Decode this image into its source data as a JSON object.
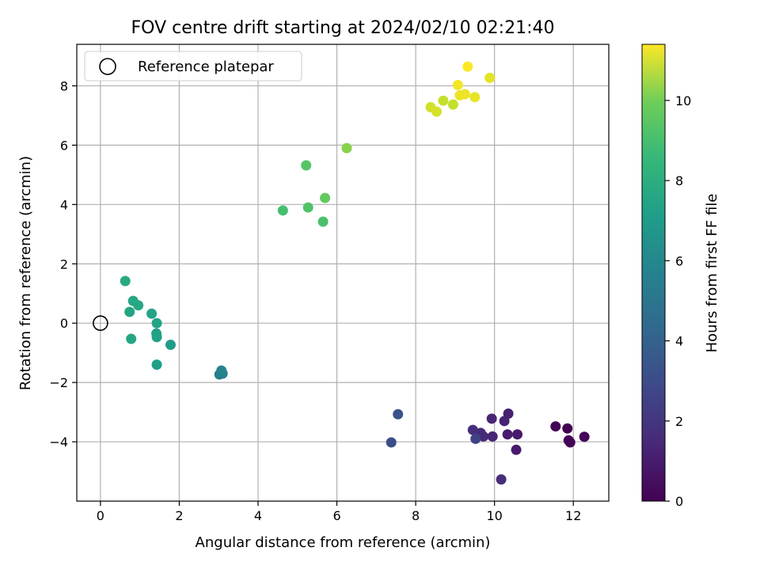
{
  "chart_data": {
    "type": "scatter",
    "title": "FOV centre drift starting at 2024/02/10 02:21:40",
    "xlabel": "Angular distance from reference (arcmin)",
    "ylabel": "Rotation from reference (arcmin)",
    "xlim": [
      -0.6,
      12.9
    ],
    "ylim": [
      -6.0,
      9.4
    ],
    "xticks": [
      "0",
      "2",
      "4",
      "6",
      "8",
      "10",
      "12"
    ],
    "yticks": [
      "−4",
      "−2",
      "0",
      "2",
      "4",
      "6",
      "8"
    ],
    "grid": true,
    "legend": {
      "placement": "top-left",
      "label": "Reference platepar"
    },
    "reference_point": {
      "x": 0,
      "y": 0
    },
    "colorbar": {
      "label": "Hours from first FF file",
      "range": [
        0,
        11.4
      ],
      "ticks": [
        "0",
        "2",
        "4",
        "6",
        "8",
        "10"
      ],
      "colormap": "viridis"
    },
    "points": [
      {
        "x": 11.55,
        "y": -3.48,
        "c": 0.0
      },
      {
        "x": 11.85,
        "y": -3.55,
        "c": 0.0
      },
      {
        "x": 11.88,
        "y": -3.95,
        "c": 0.1
      },
      {
        "x": 11.92,
        "y": -4.02,
        "c": 0.1
      },
      {
        "x": 12.28,
        "y": -3.83,
        "c": 0.2
      },
      {
        "x": 10.55,
        "y": -4.27,
        "c": 0.8
      },
      {
        "x": 10.58,
        "y": -3.75,
        "c": 0.8
      },
      {
        "x": 10.33,
        "y": -3.75,
        "c": 0.9
      },
      {
        "x": 10.35,
        "y": -3.05,
        "c": 1.0
      },
      {
        "x": 10.25,
        "y": -3.3,
        "c": 1.1
      },
      {
        "x": 9.93,
        "y": -3.22,
        "c": 1.2
      },
      {
        "x": 9.95,
        "y": -3.82,
        "c": 1.2
      },
      {
        "x": 9.72,
        "y": -3.82,
        "c": 1.3
      },
      {
        "x": 9.65,
        "y": -3.7,
        "c": 1.4
      },
      {
        "x": 9.45,
        "y": -3.6,
        "c": 1.5
      },
      {
        "x": 10.17,
        "y": -5.27,
        "c": 1.5
      },
      {
        "x": 9.52,
        "y": -3.9,
        "c": 2.2
      },
      {
        "x": 7.38,
        "y": -4.02,
        "c": 2.7
      },
      {
        "x": 7.55,
        "y": -3.07,
        "c": 2.9
      },
      {
        "x": 3.02,
        "y": -1.73,
        "c": 4.9
      },
      {
        "x": 3.1,
        "y": -1.7,
        "c": 5.0
      },
      {
        "x": 3.07,
        "y": -1.6,
        "c": 5.1
      },
      {
        "x": 1.78,
        "y": -0.73,
        "c": 6.3
      },
      {
        "x": 1.43,
        "y": -1.4,
        "c": 6.4
      },
      {
        "x": 1.43,
        "y": -0.47,
        "c": 6.5
      },
      {
        "x": 1.42,
        "y": -0.35,
        "c": 6.5
      },
      {
        "x": 1.43,
        "y": 0.0,
        "c": 6.6
      },
      {
        "x": 1.3,
        "y": 0.32,
        "c": 6.6
      },
      {
        "x": 0.78,
        "y": -0.53,
        "c": 6.7
      },
      {
        "x": 0.74,
        "y": 0.38,
        "c": 6.7
      },
      {
        "x": 0.96,
        "y": 0.6,
        "c": 6.8
      },
      {
        "x": 0.83,
        "y": 0.75,
        "c": 6.8
      },
      {
        "x": 0.63,
        "y": 1.42,
        "c": 6.9
      },
      {
        "x": 4.63,
        "y": 3.8,
        "c": 8.0
      },
      {
        "x": 5.65,
        "y": 3.42,
        "c": 8.1
      },
      {
        "x": 5.27,
        "y": 3.9,
        "c": 8.2
      },
      {
        "x": 5.22,
        "y": 5.32,
        "c": 8.3
      },
      {
        "x": 5.7,
        "y": 4.22,
        "c": 8.6
      },
      {
        "x": 6.25,
        "y": 5.9,
        "c": 9.3
      },
      {
        "x": 8.95,
        "y": 7.37,
        "c": 10.4
      },
      {
        "x": 8.7,
        "y": 7.5,
        "c": 10.4
      },
      {
        "x": 8.38,
        "y": 7.28,
        "c": 10.6
      },
      {
        "x": 8.53,
        "y": 7.13,
        "c": 10.7
      },
      {
        "x": 9.88,
        "y": 8.27,
        "c": 10.9
      },
      {
        "x": 9.5,
        "y": 7.62,
        "c": 11.0
      },
      {
        "x": 9.12,
        "y": 7.68,
        "c": 11.1
      },
      {
        "x": 9.25,
        "y": 7.72,
        "c": 11.1
      },
      {
        "x": 9.07,
        "y": 8.03,
        "c": 11.2
      },
      {
        "x": 9.32,
        "y": 8.65,
        "c": 11.4
      }
    ]
  }
}
